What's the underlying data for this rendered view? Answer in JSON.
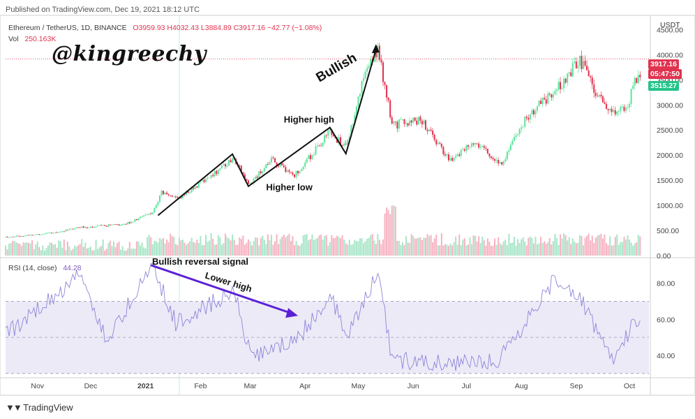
{
  "header": {
    "published": "Published on TradingView.com, Dec 19, 2021 18:12 UTC",
    "symbol": "Ethereum / TetherUS, 1D, BINANCE",
    "ohlc": "O3959.93  H4032.43  L3884.89  C3917.16  −42.77 (−1.08%)",
    "vol_label": "Vol",
    "vol_value": "250.163K",
    "rsi_label": "RSI (14, close)",
    "rsi_value": "44.28",
    "watermark": "@kingreechy",
    "currency": "USDT",
    "footer_brand": "TradingView"
  },
  "price_tags": {
    "last_price": "3917.16",
    "countdown": "05:47:50",
    "green_level": "3515.27"
  },
  "colors": {
    "up": "#26a69a",
    "up_light": "#5ee39c",
    "down": "#ef5350",
    "down_bright": "#e0334f",
    "vol_up": "#a9e6c8",
    "vol_down": "#f7b3c2",
    "rsi": "#7e57c2",
    "rsi_band": "#eceaf7",
    "annotation_line": "#111111",
    "annotation_arrow": "#5b21d6",
    "highlight": "#c8f0e6"
  },
  "chart_data": [
    {
      "type": "candlestick",
      "title": "Ethereum / TetherUS, 1D, BINANCE",
      "ylim": [
        0,
        4700
      ],
      "y_ticks": [
        0,
        500,
        1000,
        1500,
        2000,
        2500,
        3000,
        3500,
        4000,
        4500
      ],
      "y_tick_labels": [
        "0.00",
        "500.00",
        "1000.00",
        "1500.00",
        "2000.00",
        "2500.00",
        "3000.00",
        "3500.00",
        "4000.00",
        "4500.00"
      ],
      "x_labels": [
        "Nov",
        "Dec",
        "2021",
        "Feb",
        "Mar",
        "Apr",
        "May",
        "Jun",
        "Jul",
        "Aug",
        "Sep",
        "Oct"
      ],
      "price_path": [
        {
          "date": "2020-10-15",
          "price": 370
        },
        {
          "date": "2020-11-10",
          "price": 450
        },
        {
          "date": "2020-11-25",
          "price": 560
        },
        {
          "date": "2020-12-20",
          "price": 620
        },
        {
          "date": "2021-01-05",
          "price": 860
        },
        {
          "date": "2021-01-10",
          "price": 1250
        },
        {
          "date": "2021-01-20",
          "price": 1150
        },
        {
          "date": "2021-02-05",
          "price": 1550
        },
        {
          "date": "2021-02-20",
          "price": 1950
        },
        {
          "date": "2021-02-28",
          "price": 1400
        },
        {
          "date": "2021-03-13",
          "price": 1900
        },
        {
          "date": "2021-03-26",
          "price": 1600
        },
        {
          "date": "2021-04-15",
          "price": 2450
        },
        {
          "date": "2021-04-24",
          "price": 2150
        },
        {
          "date": "2021-05-03",
          "price": 3400
        },
        {
          "date": "2021-05-12",
          "price": 4150
        },
        {
          "date": "2021-05-20",
          "price": 2600
        },
        {
          "date": "2021-06-05",
          "price": 2700
        },
        {
          "date": "2021-06-22",
          "price": 1900
        },
        {
          "date": "2021-07-06",
          "price": 2300
        },
        {
          "date": "2021-07-20",
          "price": 1800
        },
        {
          "date": "2021-08-05",
          "price": 2800
        },
        {
          "date": "2021-08-20",
          "price": 3250
        },
        {
          "date": "2021-09-03",
          "price": 3900
        },
        {
          "date": "2021-09-12",
          "price": 3250
        },
        {
          "date": "2021-09-21",
          "price": 2850
        },
        {
          "date": "2021-09-30",
          "price": 3000
        },
        {
          "date": "2021-10-05",
          "price": 3550
        }
      ],
      "last_close": 3917.16
    },
    {
      "type": "bar",
      "title": "Vol",
      "series": [
        {
          "name": "Vol",
          "pattern": "volume bars, spike near mid-May 2021"
        }
      ]
    },
    {
      "type": "line",
      "title": "RSI (14, close)",
      "ylim": [
        28,
        93
      ],
      "y_ticks": [
        40,
        60,
        80
      ],
      "y_tick_labels": [
        "40.00",
        "60.00",
        "80.00"
      ],
      "bands": [
        30,
        50,
        70
      ],
      "rsi_path": [
        {
          "date": "2020-10-15",
          "value": 52
        },
        {
          "date": "2020-11-25",
          "value": 85
        },
        {
          "date": "2020-12-10",
          "value": 48
        },
        {
          "date": "2021-01-05",
          "value": 90
        },
        {
          "date": "2021-01-18",
          "value": 58
        },
        {
          "date": "2021-02-20",
          "value": 76
        },
        {
          "date": "2021-03-01",
          "value": 40
        },
        {
          "date": "2021-03-26",
          "value": 47
        },
        {
          "date": "2021-04-15",
          "value": 73
        },
        {
          "date": "2021-04-25",
          "value": 52
        },
        {
          "date": "2021-05-12",
          "value": 86
        },
        {
          "date": "2021-05-20",
          "value": 38
        },
        {
          "date": "2021-06-22",
          "value": 35
        },
        {
          "date": "2021-07-20",
          "value": 38
        },
        {
          "date": "2021-08-20",
          "value": 82
        },
        {
          "date": "2021-09-03",
          "value": 73
        },
        {
          "date": "2021-09-21",
          "value": 36
        },
        {
          "date": "2021-10-05",
          "value": 60
        }
      ],
      "last_value": 44.28
    }
  ],
  "annotations": {
    "bullish": "Bullish",
    "higher_high": "Higher high",
    "higher_low": "Higher low",
    "bullish_reversal": "Bullish reversal signal",
    "lower_high": "Lower high"
  }
}
